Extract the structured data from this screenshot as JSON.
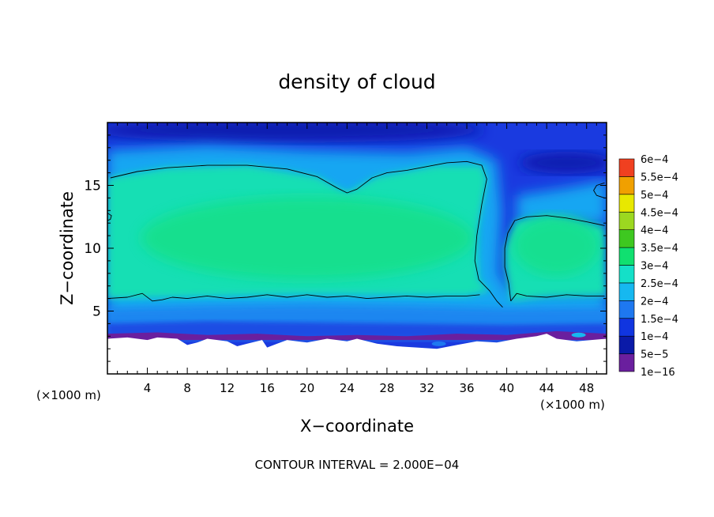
{
  "chart_data": {
    "type": "heatmap",
    "title": "density of cloud",
    "xlabel": "X−coordinate",
    "ylabel": "Z−coordinate",
    "x_unit_label": "(×1000 m)",
    "y_unit_label": "(×1000 m)",
    "footer": "CONTOUR INTERVAL = 2.000E−04",
    "xlim": [
      0,
      50
    ],
    "ylim": [
      0,
      20
    ],
    "x_ticks": [
      4,
      8,
      12,
      16,
      20,
      24,
      28,
      32,
      36,
      40,
      44,
      48
    ],
    "y_ticks": [
      5,
      10,
      15
    ],
    "colorbar": {
      "levels": [
        "1e−16",
        "5e−5",
        "1e−4",
        "1.5e−4",
        "2e−4",
        "2.5e−4",
        "3e−4",
        "3.5e−4",
        "4e−4",
        "4.5e−4",
        "5e−4",
        "5.5e−4",
        "6e−4"
      ],
      "colors": [
        "#6a1f9e",
        "#0a1aa8",
        "#1035e0",
        "#1e78f0",
        "#16b8f0",
        "#14e0c8",
        "#10e070",
        "#3ec820",
        "#9cd820",
        "#e8e800",
        "#f0a000",
        "#f04020",
        "#f07878"
      ]
    },
    "field_colors": {
      "top_layer": "#1a3ae0",
      "top_dark": "#0d1eb0",
      "upper_band": "#17a6f2",
      "cloud_core": "#14dfb4",
      "cloud_bright": "#12e088",
      "lower_band": "#1e86f0",
      "near_base": "#1d4ee4",
      "base": "#6a1f9e",
      "below_cloud": "#ffffff"
    },
    "contours": [
      {
        "level": "2e−4",
        "points": [
          [
            0.3,
            15.6
          ],
          [
            3,
            16.1
          ],
          [
            6,
            16.4
          ],
          [
            10,
            16.6
          ],
          [
            14,
            16.6
          ],
          [
            18,
            16.3
          ],
          [
            21,
            15.7
          ],
          [
            23,
            14.8
          ],
          [
            24,
            14.4
          ],
          [
            25,
            14.7
          ],
          [
            26.5,
            15.6
          ],
          [
            28,
            16.0
          ],
          [
            30,
            16.2
          ],
          [
            32,
            16.5
          ],
          [
            34,
            16.8
          ],
          [
            36,
            16.9
          ],
          [
            37.5,
            16.6
          ],
          [
            38,
            15.5
          ],
          [
            37.5,
            13.5
          ],
          [
            37,
            11
          ],
          [
            36.8,
            9
          ],
          [
            37.2,
            7.5
          ],
          [
            38.3,
            6.6
          ],
          [
            39,
            5.8
          ],
          [
            39.6,
            5.3
          ]
        ]
      },
      {
        "level": "2e−4",
        "points": [
          [
            0,
            6.0
          ],
          [
            2,
            6.1
          ],
          [
            3.5,
            6.4
          ],
          [
            4.5,
            5.8
          ],
          [
            5.5,
            5.9
          ],
          [
            6.5,
            6.1
          ],
          [
            8,
            6.0
          ],
          [
            10,
            6.2
          ],
          [
            12,
            6.0
          ],
          [
            14,
            6.1
          ],
          [
            16,
            6.3
          ],
          [
            18,
            6.1
          ],
          [
            20,
            6.3
          ],
          [
            22,
            6.1
          ],
          [
            24,
            6.2
          ],
          [
            26,
            6.0
          ],
          [
            28,
            6.1
          ],
          [
            30,
            6.2
          ],
          [
            32,
            6.1
          ],
          [
            34,
            6.2
          ],
          [
            36,
            6.2
          ],
          [
            37.3,
            6.3
          ]
        ]
      },
      {
        "level": "2e−4",
        "points": [
          [
            40.4,
            5.8
          ],
          [
            40.2,
            7.2
          ],
          [
            39.8,
            8.5
          ],
          [
            39.8,
            10
          ],
          [
            40.1,
            11.2
          ],
          [
            40.8,
            12.2
          ],
          [
            42,
            12.5
          ],
          [
            44,
            12.6
          ],
          [
            46,
            12.4
          ],
          [
            48,
            12.1
          ],
          [
            49.8,
            11.8
          ]
        ]
      },
      {
        "level": "2e−4",
        "points": [
          [
            40.4,
            5.8
          ],
          [
            41,
            6.4
          ],
          [
            42,
            6.2
          ],
          [
            44,
            6.1
          ],
          [
            46,
            6.3
          ],
          [
            48,
            6.2
          ],
          [
            49.8,
            6.2
          ]
        ]
      },
      {
        "level": "2e−4",
        "points": [
          [
            49.8,
            15.2
          ],
          [
            49.0,
            15.0
          ],
          [
            48.7,
            14.6
          ],
          [
            49.0,
            14.2
          ],
          [
            49.8,
            14.0
          ]
        ]
      },
      {
        "level": "2e−4",
        "points": [
          [
            0,
            12.8
          ],
          [
            0.4,
            12.6
          ],
          [
            0.3,
            12.3
          ],
          [
            0,
            12.2
          ]
        ]
      }
    ]
  }
}
